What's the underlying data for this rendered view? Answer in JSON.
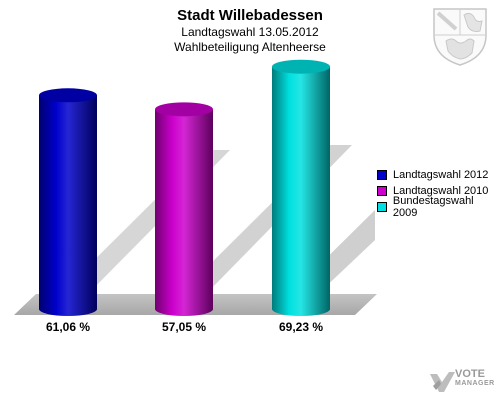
{
  "chart_data": {
    "type": "bar",
    "title": "Stadt Willebadessen",
    "subtitle": "Landtagswahl 13.05.2012",
    "subtitle2": "Wahlbeteiligung Altenheerse",
    "categories": [
      "Landtagswahl 2012",
      "Landtagswahl 2010",
      "Bundestagswahl 2009"
    ],
    "values": [
      61.06,
      57.05,
      69.23
    ],
    "value_labels": [
      "61,06 %",
      "57,05 %",
      "69,23 %"
    ],
    "colors": [
      "#0000cc",
      "#cc00cc",
      "#00e0e0"
    ],
    "ylim": [
      0,
      100
    ],
    "legend_position": "right",
    "style": "3d-cylinder"
  },
  "legend": {
    "items": [
      {
        "label": "Landtagswahl 2012",
        "color": "#0000cc"
      },
      {
        "label": "Landtagswahl 2010",
        "color": "#cc00cc"
      },
      {
        "label": "Bundestagswahl 2009",
        "color": "#00e0e0"
      }
    ]
  },
  "branding": {
    "vote_label": "VOTE",
    "manager_label": "MANAGER",
    "coat_of_arms_icon": "coat-of-arms-icon"
  }
}
